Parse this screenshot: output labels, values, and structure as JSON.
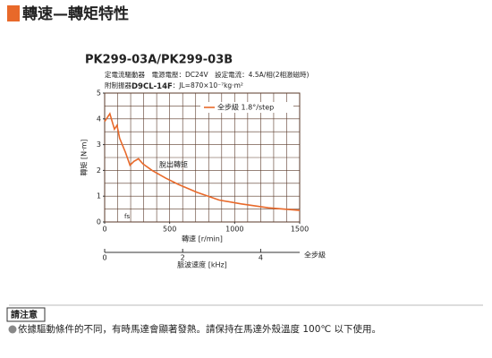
{
  "header": {
    "title": "轉速—轉矩特性"
  },
  "chart_data": {
    "type": "line",
    "title": "PK299-03A/PK299-03B",
    "notes": [
      "定電流驅動器　電源電壓：DC24V　設定電流：4.5A/相(2相激磁時)"
    ],
    "inertia_note": [
      "附制振器",
      "D9CL-14F",
      "：JL=870×10⁻⁷kg·m²"
    ],
    "xlabel": "轉速 [r/min]",
    "ylabel": "轉矩 [N·m]",
    "x2label": "脈波速度 [kHz]",
    "x2_note": "全步級",
    "annotations": [
      "脫出轉矩",
      "fs"
    ],
    "xlim": [
      0,
      1500
    ],
    "xticks": [
      0,
      500,
      1000,
      1500
    ],
    "ylim": [
      0,
      5
    ],
    "yticks": [
      0,
      1,
      2,
      3,
      4,
      5
    ],
    "x2lim": [
      0,
      5
    ],
    "x2ticks": [
      0,
      2,
      4
    ],
    "grid": true,
    "xgrid": [
      100,
      200,
      300,
      400,
      500,
      600,
      700,
      800,
      900,
      1000,
      1100,
      1200,
      1300,
      1400
    ],
    "ygrid": [
      0.5,
      1,
      1.5,
      2,
      2.5,
      3,
      3.5,
      4,
      4.5
    ],
    "legend": "upper right",
    "series": [
      {
        "name": "全步級 1.8°/step",
        "color": "#e8692a",
        "x": [
          0,
          40,
          75,
          95,
          115,
          160,
          195,
          225,
          260,
          295,
          365,
          470,
          570,
          710,
          880,
          1050,
          1260,
          1500
        ],
        "values": [
          3.9,
          4.2,
          3.6,
          3.75,
          3.25,
          2.7,
          2.2,
          2.35,
          2.45,
          2.25,
          2.0,
          1.7,
          1.45,
          1.15,
          0.85,
          0.7,
          0.55,
          0.45
        ]
      }
    ]
  },
  "notice": {
    "title": "請注意",
    "text": "依據驅動條件的不同，有時馬達會顯著發熱。請保持在馬達外殼溫度 100℃ 以下使用。"
  }
}
